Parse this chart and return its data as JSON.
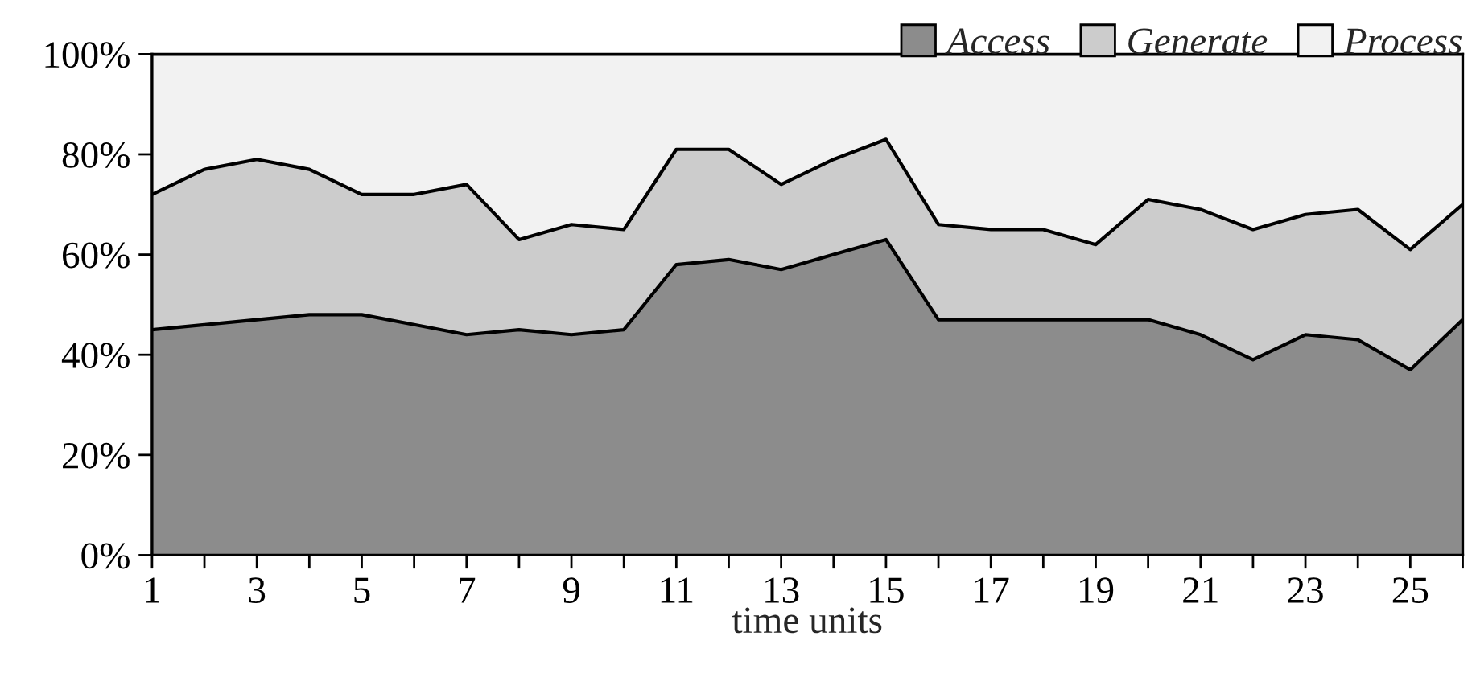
{
  "chart_data": {
    "type": "area",
    "stacked": true,
    "xlabel": "time units",
    "x": [
      1,
      2,
      3,
      4,
      5,
      6,
      7,
      8,
      9,
      10,
      11,
      12,
      13,
      14,
      15,
      16,
      17,
      18,
      19,
      20,
      21,
      22,
      23,
      24,
      25,
      26
    ],
    "series": [
      {
        "name": "Access",
        "color": "#8c8c8c",
        "values": [
          45,
          46,
          47,
          48,
          48,
          46,
          44,
          45,
          44,
          45,
          58,
          59,
          57,
          60,
          63,
          47,
          47,
          47,
          47,
          47,
          44,
          39,
          44,
          43,
          37,
          47
        ]
      },
      {
        "name": "Generate",
        "color": "#cccccc",
        "values": [
          27,
          31,
          32,
          29,
          24,
          26,
          30,
          18,
          22,
          20,
          23,
          22,
          17,
          19,
          20,
          19,
          18,
          18,
          15,
          24,
          25,
          26,
          24,
          26,
          24,
          23
        ]
      },
      {
        "name": "Process",
        "color": "#f2f2f2",
        "values": [
          28,
          23,
          21,
          23,
          28,
          28,
          26,
          37,
          34,
          35,
          19,
          19,
          26,
          21,
          17,
          34,
          35,
          35,
          38,
          29,
          31,
          35,
          32,
          31,
          39,
          30
        ]
      }
    ],
    "xlim": [
      1,
      26
    ],
    "xticks": [
      1,
      {
        "value": 2,
        "label": null
      },
      3,
      {
        "value": 4,
        "label": null
      },
      5,
      {
        "value": 6,
        "label": null
      },
      7,
      {
        "value": 8,
        "label": null
      },
      9,
      {
        "value": 10,
        "label": null
      },
      11,
      {
        "value": 12,
        "label": null
      },
      13,
      {
        "value": 14,
        "label": null
      },
      15,
      {
        "value": 16,
        "label": null
      },
      17,
      {
        "value": 18,
        "label": null
      },
      19,
      {
        "value": 20,
        "label": null
      },
      21,
      {
        "value": 22,
        "label": null
      },
      23,
      {
        "value": 24,
        "label": null
      },
      25,
      {
        "value": 26,
        "label": null
      }
    ],
    "ylim": [
      0,
      100
    ],
    "yticks": [
      {
        "value": 0,
        "label": "0%"
      },
      {
        "value": 20,
        "label": "20%"
      },
      {
        "value": 40,
        "label": "40%"
      },
      {
        "value": 60,
        "label": "60%"
      },
      {
        "value": 80,
        "label": "80%"
      },
      {
        "value": 100,
        "label": "100%"
      }
    ],
    "legend": "top right"
  }
}
